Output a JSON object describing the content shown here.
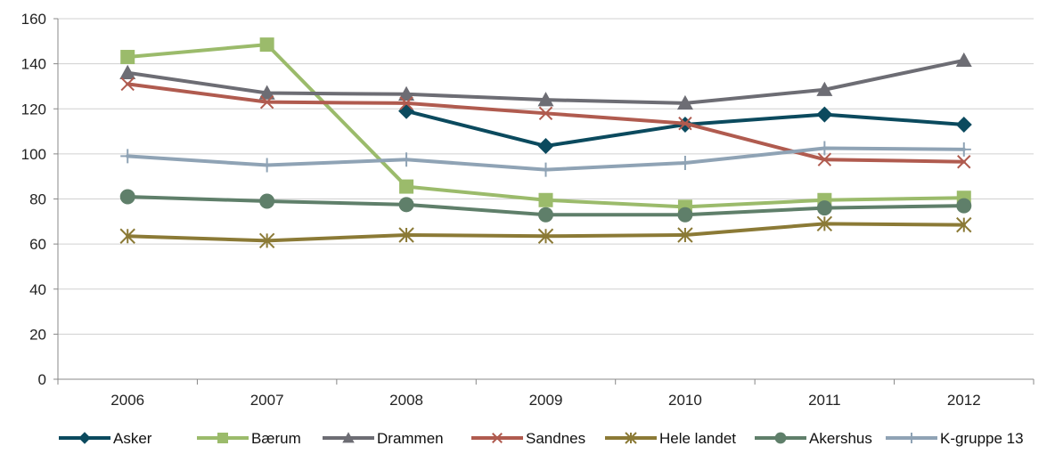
{
  "chart_data": {
    "type": "line",
    "x": [
      "2006",
      "2007",
      "2008",
      "2009",
      "2010",
      "2011",
      "2012"
    ],
    "ylim": [
      0,
      160
    ],
    "yticks": [
      0,
      20,
      40,
      60,
      80,
      100,
      120,
      140,
      160
    ],
    "grid": "horizontal",
    "legend_position": "bottom",
    "series": [
      {
        "name": "Asker",
        "color": "#0b4a5e",
        "marker": "diamond",
        "values": [
          null,
          null,
          119,
          103.5,
          113,
          117.5,
          113
        ]
      },
      {
        "name": "Bærum",
        "color": "#9bbb6b",
        "marker": "square",
        "values": [
          143,
          148.5,
          85.5,
          79.5,
          76.5,
          79.5,
          80.5
        ]
      },
      {
        "name": "Drammen",
        "color": "#6d6d74",
        "marker": "triangle",
        "values": [
          136,
          127,
          126.5,
          124,
          122.5,
          128.5,
          141.5
        ]
      },
      {
        "name": "Sandnes",
        "color": "#b05b4f",
        "marker": "x",
        "values": [
          131,
          123,
          122.5,
          118,
          113.5,
          97.5,
          96.5
        ]
      },
      {
        "name": "Hele landet",
        "color": "#8b7a36",
        "marker": "star",
        "values": [
          63.5,
          61.5,
          64,
          63.5,
          64,
          69,
          68.5
        ]
      },
      {
        "name": "Akershus",
        "color": "#5f7f6a",
        "marker": "circle",
        "values": [
          81,
          79,
          77.5,
          73,
          73,
          76,
          77
        ]
      },
      {
        "name": "K-gruppe 13",
        "color": "#8fa3b5",
        "marker": "plus",
        "values": [
          99,
          95,
          97.5,
          93,
          96,
          102.5,
          102
        ]
      }
    ]
  }
}
